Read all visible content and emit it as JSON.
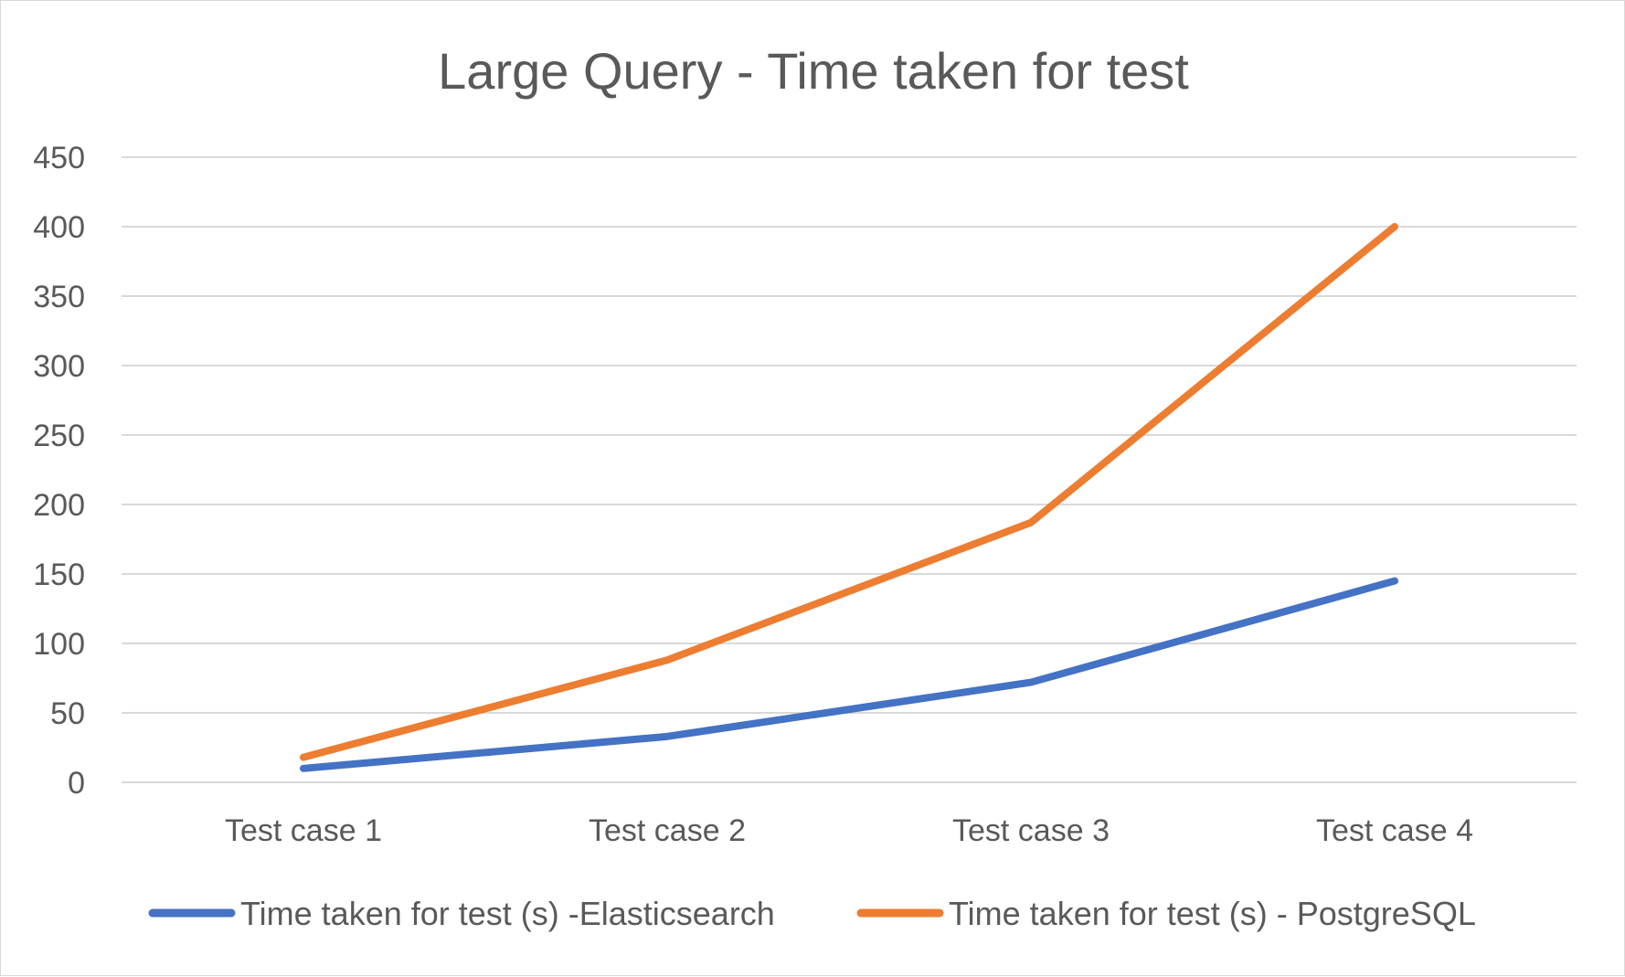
{
  "chart_data": {
    "type": "line",
    "title": "Large Query - Time taken for test",
    "xlabel": "",
    "ylabel": "",
    "categories": [
      "Test case 1",
      "Test case 2",
      "Test case 3",
      "Test case 4"
    ],
    "ylim": [
      0,
      450
    ],
    "yticks": [
      "0",
      "50",
      "100",
      "150",
      "200",
      "250",
      "300",
      "350",
      "400",
      "450"
    ],
    "grid": true,
    "legend_position": "bottom",
    "series": [
      {
        "name": "Time taken for test (s) -Elasticsearch",
        "color": "#4472c4",
        "values": [
          10,
          33,
          72,
          145
        ]
      },
      {
        "name": "Time taken for test (s) - PostgreSQL",
        "color": "#ed7d31",
        "values": [
          18,
          88,
          187,
          400
        ]
      }
    ]
  }
}
